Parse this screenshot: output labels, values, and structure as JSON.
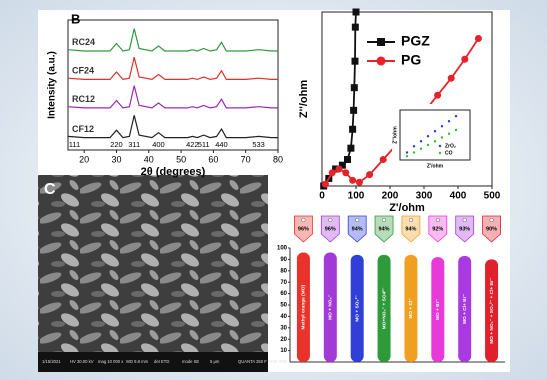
{
  "chart_data": [
    {
      "type": "line",
      "panel": "B",
      "xlabel": "2θ (degrees)",
      "ylabel": "Intensity (a.u.)",
      "x": [
        15,
        20,
        28,
        30,
        32,
        34,
        35.5,
        37,
        41,
        43,
        45,
        52,
        53.5,
        55,
        57,
        59,
        61,
        62.5,
        64,
        70,
        74,
        78,
        80
      ],
      "xlim": [
        15,
        80
      ],
      "xticks": [
        20,
        30,
        40,
        50,
        60,
        70,
        80
      ],
      "ylim": [
        0,
        105
      ],
      "series": [
        {
          "name": "RC24",
          "color": "#2e9a3a",
          "values": [
            81,
            80,
            80,
            86,
            80,
            81,
            98,
            82,
            80,
            84,
            80,
            80,
            81,
            80,
            82,
            80,
            81,
            87,
            80,
            80,
            81,
            80,
            80
          ]
        },
        {
          "name": "CF24",
          "color": "#e0302a",
          "values": [
            58,
            57,
            57,
            63,
            57,
            58,
            75,
            59,
            57,
            61,
            57,
            57,
            58,
            57,
            59,
            57,
            58,
            64,
            57,
            57,
            58,
            57,
            57
          ]
        },
        {
          "name": "RC12",
          "color": "#9a2ab0",
          "values": [
            35,
            34,
            34,
            40,
            34,
            35,
            52,
            36,
            34,
            38,
            34,
            34,
            35,
            34,
            36,
            34,
            35,
            41,
            34,
            34,
            35,
            34,
            34
          ]
        },
        {
          "name": "CF12",
          "color": "#222222",
          "values": [
            11,
            10,
            10,
            16,
            10,
            11,
            28,
            12,
            10,
            14,
            10,
            10,
            11,
            10,
            12,
            10,
            11,
            17,
            10,
            10,
            11,
            10,
            10
          ]
        }
      ],
      "peaks": {
        "x": [
          17,
          30,
          35.5,
          43,
          53.5,
          57,
          62.5,
          74
        ],
        "labels": [
          "111",
          "220",
          "311",
          "400",
          "422",
          "511",
          "440",
          "533"
        ]
      }
    },
    {
      "type": "line",
      "xlabel": "Z'/ohm",
      "ylabel": "Z''/ohm",
      "xlim": [
        0,
        500
      ],
      "xticks": [
        0,
        100,
        200,
        300,
        400,
        500
      ],
      "ylim": [
        0,
        460
      ],
      "legend": "top-right",
      "series": [
        {
          "name": "PGZ",
          "color": "#111111",
          "marker": "square",
          "x": [
            5,
            20,
            40,
            60,
            75,
            85,
            90,
            93,
            95,
            97,
            98,
            100
          ],
          "values": [
            0,
            20,
            45,
            55,
            70,
            100,
            150,
            200,
            260,
            330,
            420,
            460
          ]
        },
        {
          "name": "PG",
          "color": "#e8222a",
          "marker": "circle",
          "x": [
            10,
            30,
            50,
            70,
            90,
            110,
            140,
            180,
            220,
            260,
            300,
            340,
            380,
            420,
            460
          ],
          "values": [
            5,
            35,
            45,
            35,
            15,
            10,
            30,
            70,
            110,
            150,
            195,
            240,
            285,
            335,
            390
          ]
        }
      ]
    },
    {
      "type": "scatter",
      "xlabel": "Z'/ohm",
      "ylabel": "Z''/ohm",
      "xlim": [
        0,
        20000
      ],
      "ylim": [
        0,
        20000
      ],
      "series": [
        {
          "name": "ZrO₂",
          "color": "#2040e0",
          "x": [
            2000,
            4000,
            6000,
            8000,
            10000,
            12000,
            14000,
            16000
          ],
          "values": [
            3000,
            5500,
            7500,
            9500,
            11500,
            13500,
            15500,
            17500
          ]
        },
        {
          "name": "CO",
          "color": "#30c030",
          "x": [
            2000,
            4000,
            6000,
            8000,
            10000,
            12000,
            14000,
            16000
          ],
          "values": [
            1500,
            3000,
            4500,
            6000,
            7500,
            9000,
            10500,
            12000
          ]
        }
      ]
    },
    {
      "type": "bar",
      "categories": [
        "Methyl orange (MO)",
        "MO + NO₃⁻",
        "MO + SO₄²⁻",
        "MO+NO₃⁻ + SO4²⁻",
        "MO + Cl⁻",
        "MO + Br⁻",
        "MO + Cl+ Br⁻",
        "MO + NO₃⁻ + SO₄²⁻ + Cl+ Br⁻"
      ],
      "values": [
        96,
        96,
        94,
        94,
        94,
        92,
        93,
        90
      ],
      "value_labels": [
        "96%",
        "96%",
        "94%",
        "94%",
        "94%",
        "92%",
        "93%",
        "90%"
      ],
      "colors": [
        "#e8322a",
        "#a23bd6",
        "#2f3fd8",
        "#2f9a3a",
        "#f0a020",
        "#e83ad8",
        "#a83ae0",
        "#e0202a"
      ],
      "ylim": [
        0,
        100
      ],
      "yticks": [
        10,
        20,
        30,
        40,
        50,
        60,
        70,
        80,
        90,
        100
      ]
    }
  ],
  "sem_image": {
    "panel": "C",
    "info": [
      "1/15/2021",
      "HV 30.00 kV",
      "mag 10 000 x",
      "WD 9.8 mm",
      "det ETD",
      "mode SE",
      "5 μm",
      "QUANTA 250 F SAIF IITM"
    ]
  }
}
